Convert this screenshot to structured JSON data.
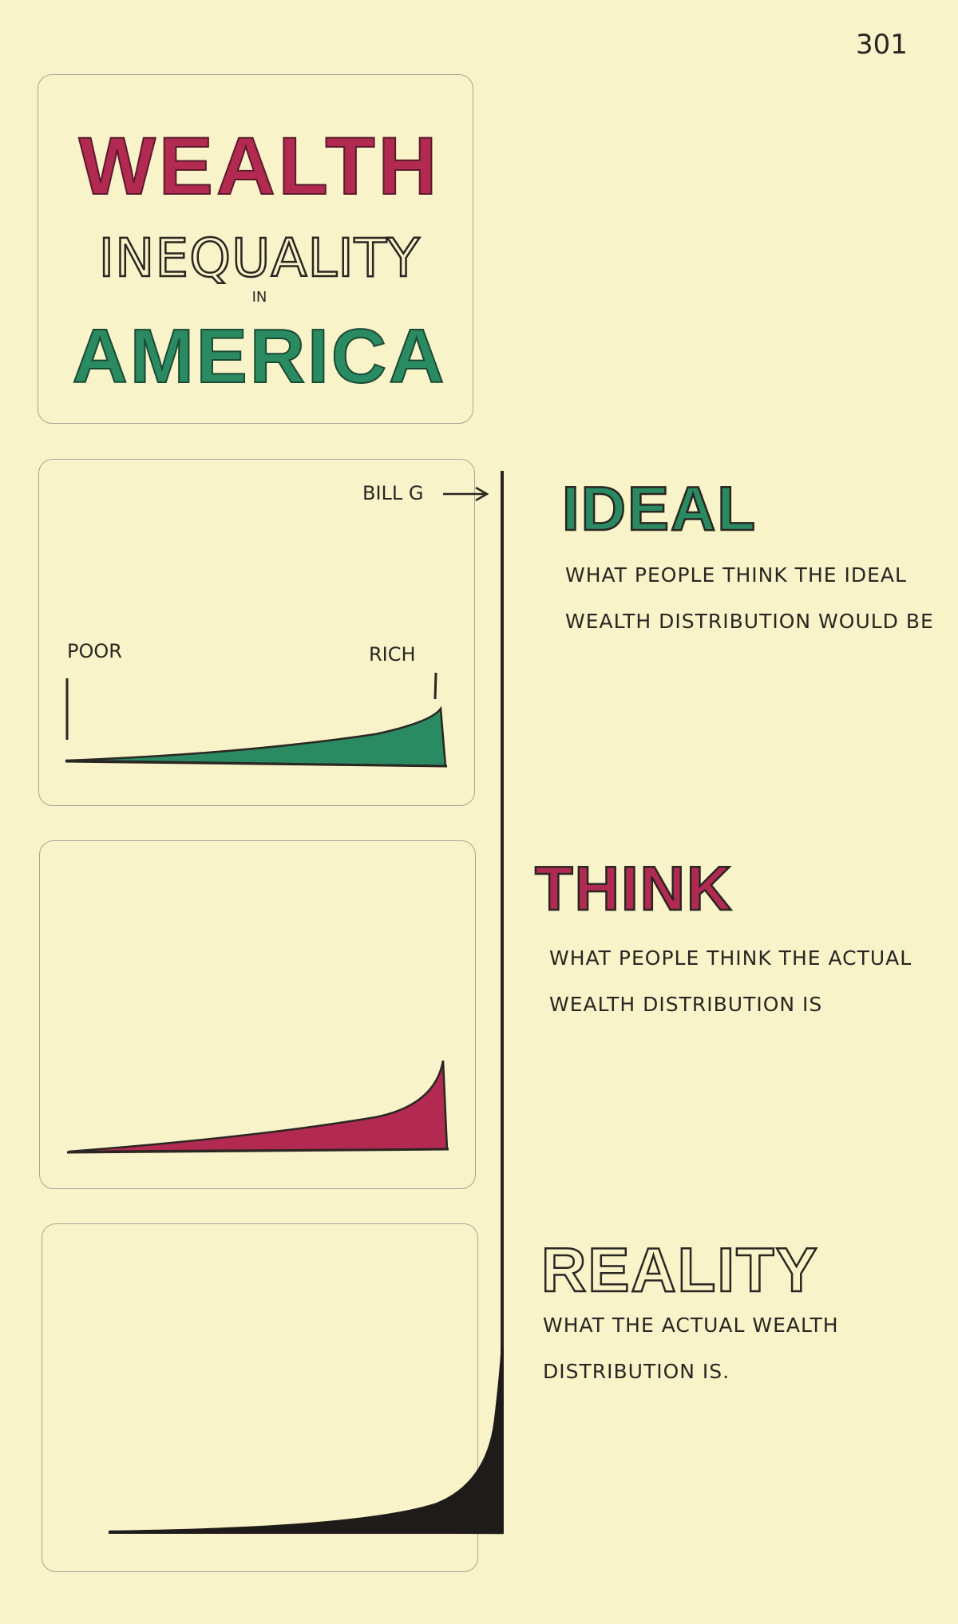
{
  "page_number": "301",
  "title": {
    "line1": "WEALTH",
    "line2": "INEQUALITY",
    "line3": "IN",
    "line4": "AMERICA"
  },
  "chart_labels": {
    "top": "BILL G",
    "left": "POOR",
    "right": "RICH"
  },
  "sections": [
    {
      "heading": "IDEAL",
      "text": "WHAT PEOPLE THINK THE IDEAL WEALTH DISTRIBUTION WOULD BE"
    },
    {
      "heading": "THINK",
      "text": "WHAT PEOPLE THINK THE ACTUAL WEALTH DISTRIBUTION IS"
    },
    {
      "heading": "REALITY",
      "text": "WHAT THE ACTUAL WEALTH DISTRIBUTION IS."
    }
  ]
}
